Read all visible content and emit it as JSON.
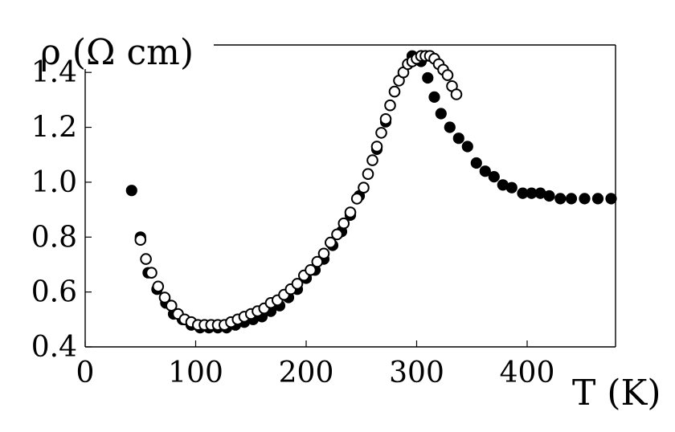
{
  "chart_data": {
    "type": "scatter",
    "xlabel": "T (K)",
    "ylabel": "ρ (Ω cm)",
    "xlim": [
      0,
      480
    ],
    "ylim": [
      0.4,
      1.5
    ],
    "x_ticks": [
      "0",
      "100",
      "200",
      "300",
      "400"
    ],
    "x_tick_values": [
      0,
      100,
      200,
      300,
      400
    ],
    "y_ticks": [
      "0.4",
      "0.6",
      "0.8",
      "1.0",
      "1.2",
      "1.4"
    ],
    "y_tick_values": [
      0.4,
      0.6,
      0.8,
      1.0,
      1.2,
      1.4
    ],
    "grid": false,
    "colors": {
      "marker": "#000000",
      "axis": "#000000",
      "open_fill": "#ffffff"
    },
    "series": [
      {
        "marker": "filled-circle",
        "points": [
          [
            42,
            0.97
          ],
          [
            50,
            0.8
          ],
          [
            57,
            0.67
          ],
          [
            65,
            0.61
          ],
          [
            73,
            0.56
          ],
          [
            80,
            0.52
          ],
          [
            88,
            0.5
          ],
          [
            96,
            0.48
          ],
          [
            104,
            0.47
          ],
          [
            112,
            0.47
          ],
          [
            120,
            0.47
          ],
          [
            128,
            0.47
          ],
          [
            136,
            0.48
          ],
          [
            144,
            0.49
          ],
          [
            152,
            0.5
          ],
          [
            160,
            0.51
          ],
          [
            168,
            0.53
          ],
          [
            176,
            0.55
          ],
          [
            184,
            0.58
          ],
          [
            192,
            0.61
          ],
          [
            200,
            0.65
          ],
          [
            208,
            0.68
          ],
          [
            216,
            0.72
          ],
          [
            224,
            0.77
          ],
          [
            232,
            0.82
          ],
          [
            240,
            0.88
          ],
          [
            248,
            0.95
          ],
          [
            256,
            1.03
          ],
          [
            264,
            1.12
          ],
          [
            272,
            1.22
          ],
          [
            280,
            1.33
          ],
          [
            296,
            1.46
          ],
          [
            304,
            1.44
          ],
          [
            310,
            1.38
          ],
          [
            316,
            1.31
          ],
          [
            322,
            1.25
          ],
          [
            330,
            1.2
          ],
          [
            338,
            1.16
          ],
          [
            346,
            1.13
          ],
          [
            354,
            1.07
          ],
          [
            362,
            1.04
          ],
          [
            370,
            1.02
          ],
          [
            378,
            0.99
          ],
          [
            386,
            0.98
          ],
          [
            396,
            0.96
          ],
          [
            404,
            0.96
          ],
          [
            412,
            0.96
          ],
          [
            420,
            0.95
          ],
          [
            430,
            0.94
          ],
          [
            440,
            0.94
          ],
          [
            452,
            0.94
          ],
          [
            464,
            0.94
          ],
          [
            476,
            0.94
          ]
        ]
      },
      {
        "marker": "open-circle",
        "points": [
          [
            50,
            0.79
          ],
          [
            55,
            0.72
          ],
          [
            60,
            0.67
          ],
          [
            66,
            0.62
          ],
          [
            72,
            0.58
          ],
          [
            78,
            0.55
          ],
          [
            84,
            0.52
          ],
          [
            90,
            0.5
          ],
          [
            96,
            0.49
          ],
          [
            102,
            0.48
          ],
          [
            108,
            0.48
          ],
          [
            114,
            0.48
          ],
          [
            120,
            0.48
          ],
          [
            126,
            0.48
          ],
          [
            132,
            0.49
          ],
          [
            138,
            0.5
          ],
          [
            144,
            0.51
          ],
          [
            150,
            0.52
          ],
          [
            156,
            0.53
          ],
          [
            162,
            0.54
          ],
          [
            168,
            0.56
          ],
          [
            174,
            0.57
          ],
          [
            180,
            0.59
          ],
          [
            186,
            0.61
          ],
          [
            192,
            0.63
          ],
          [
            198,
            0.66
          ],
          [
            204,
            0.68
          ],
          [
            210,
            0.71
          ],
          [
            216,
            0.74
          ],
          [
            222,
            0.78
          ],
          [
            228,
            0.81
          ],
          [
            234,
            0.85
          ],
          [
            240,
            0.89
          ],
          [
            246,
            0.94
          ],
          [
            252,
            0.98
          ],
          [
            256,
            1.03
          ],
          [
            260,
            1.08
          ],
          [
            264,
            1.13
          ],
          [
            268,
            1.18
          ],
          [
            272,
            1.23
          ],
          [
            276,
            1.28
          ],
          [
            280,
            1.33
          ],
          [
            284,
            1.37
          ],
          [
            288,
            1.4
          ],
          [
            292,
            1.43
          ],
          [
            296,
            1.44
          ],
          [
            300,
            1.45
          ],
          [
            304,
            1.46
          ],
          [
            308,
            1.46
          ],
          [
            312,
            1.46
          ],
          [
            316,
            1.45
          ],
          [
            320,
            1.43
          ],
          [
            324,
            1.41
          ],
          [
            328,
            1.39
          ],
          [
            332,
            1.35
          ],
          [
            336,
            1.32
          ]
        ]
      }
    ]
  }
}
